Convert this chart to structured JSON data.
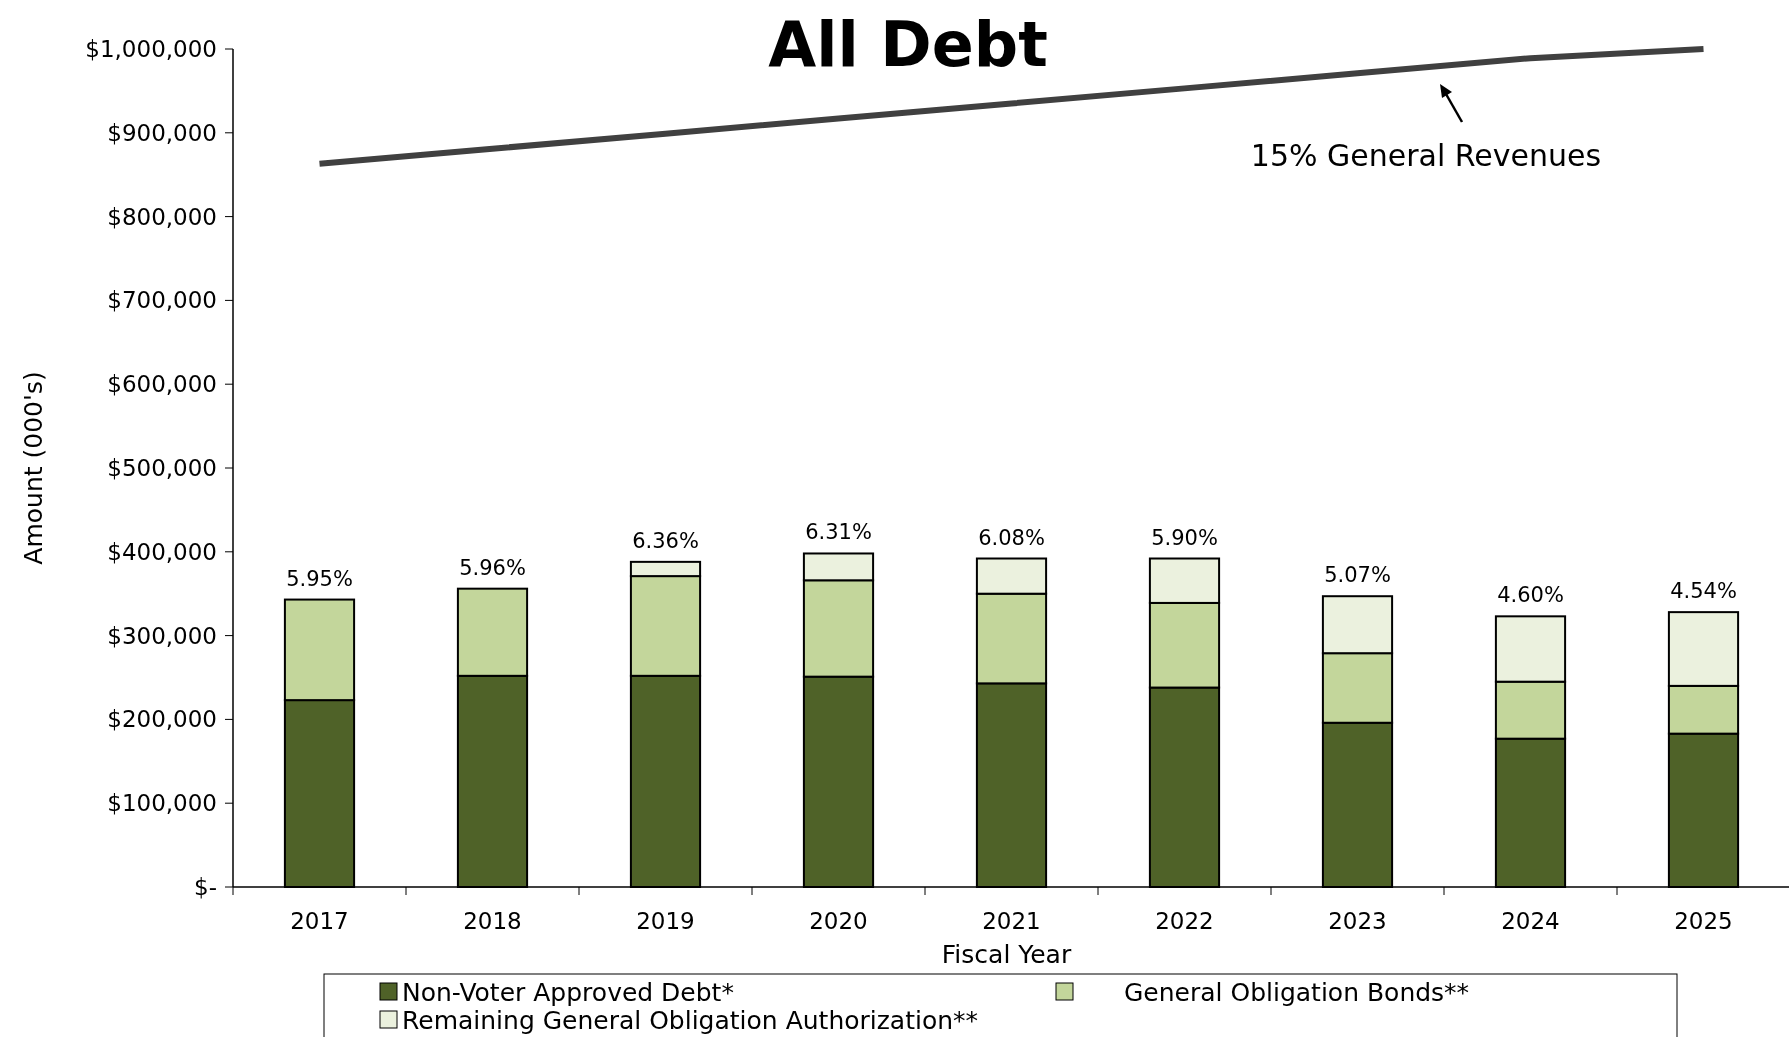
{
  "chart_data": {
    "type": "bar",
    "title": "All Debt",
    "xlabel": "Fiscal Year",
    "ylabel": "Amount (000's)",
    "stacked": true,
    "legend": "bottom",
    "grid": false,
    "categories": [
      "2017",
      "2018",
      "2019",
      "2020",
      "2021",
      "2022",
      "2023",
      "2024",
      "2025"
    ],
    "ylim": [
      0,
      1000000
    ],
    "yticks": [
      {
        "value": 0,
        "label": "$-"
      },
      {
        "value": 100000,
        "label": "$100,000"
      },
      {
        "value": 200000,
        "label": "$200,000"
      },
      {
        "value": 300000,
        "label": "$300,000"
      },
      {
        "value": 400000,
        "label": "$400,000"
      },
      {
        "value": 500000,
        "label": "$500,000"
      },
      {
        "value": 600000,
        "label": "$600,000"
      },
      {
        "value": 700000,
        "label": "$700,000"
      },
      {
        "value": 800000,
        "label": "$800,000"
      },
      {
        "value": 900000,
        "label": "$900,000"
      },
      {
        "value": 1000000,
        "label": "$1,000,000"
      }
    ],
    "series": [
      {
        "name": "Non-Voter Approved Debt*",
        "color": "#4f6228",
        "values": [
          223000,
          252000,
          252000,
          251000,
          243000,
          238000,
          196000,
          177000,
          183000
        ]
      },
      {
        "name": "General Obligation Bonds**",
        "color": "#c3d69b",
        "values": [
          120000,
          104000,
          119000,
          115000,
          107000,
          101000,
          83000,
          68000,
          57000
        ]
      },
      {
        "name": "Remaining General Obligation Authorization**",
        "color": "#ebf1de",
        "values": [
          0,
          0,
          17000,
          32000,
          42000,
          53000,
          68000,
          78000,
          88000
        ]
      },
      {
        "type": "line",
        "color": "#404040",
        "values": [
          863000,
          881000,
          899000,
          917000,
          935000,
          953000,
          971000,
          989000,
          1000000
        ]
      }
    ],
    "annotations": [
      "15% General Revenues",
      {
        "text": "5.95%",
        "x": "2017",
        "y": 343000
      },
      {
        "text": "5.96%",
        "x": "2018",
        "y": 356000
      },
      {
        "text": "6.36%",
        "x": "2019",
        "y": 388000
      },
      {
        "text": "6.31%",
        "x": "2020",
        "y": 398000
      },
      {
        "text": "6.08%",
        "x": "2021",
        "y": 392000
      },
      {
        "text": "5.90%",
        "x": "2022",
        "y": 392000
      },
      {
        "text": "5.07%",
        "x": "2023",
        "y": 347000
      },
      {
        "text": "4.60%",
        "x": "2024",
        "y": 323000
      },
      {
        "text": "4.54%",
        "x": "2025",
        "y": 328000
      }
    ]
  }
}
